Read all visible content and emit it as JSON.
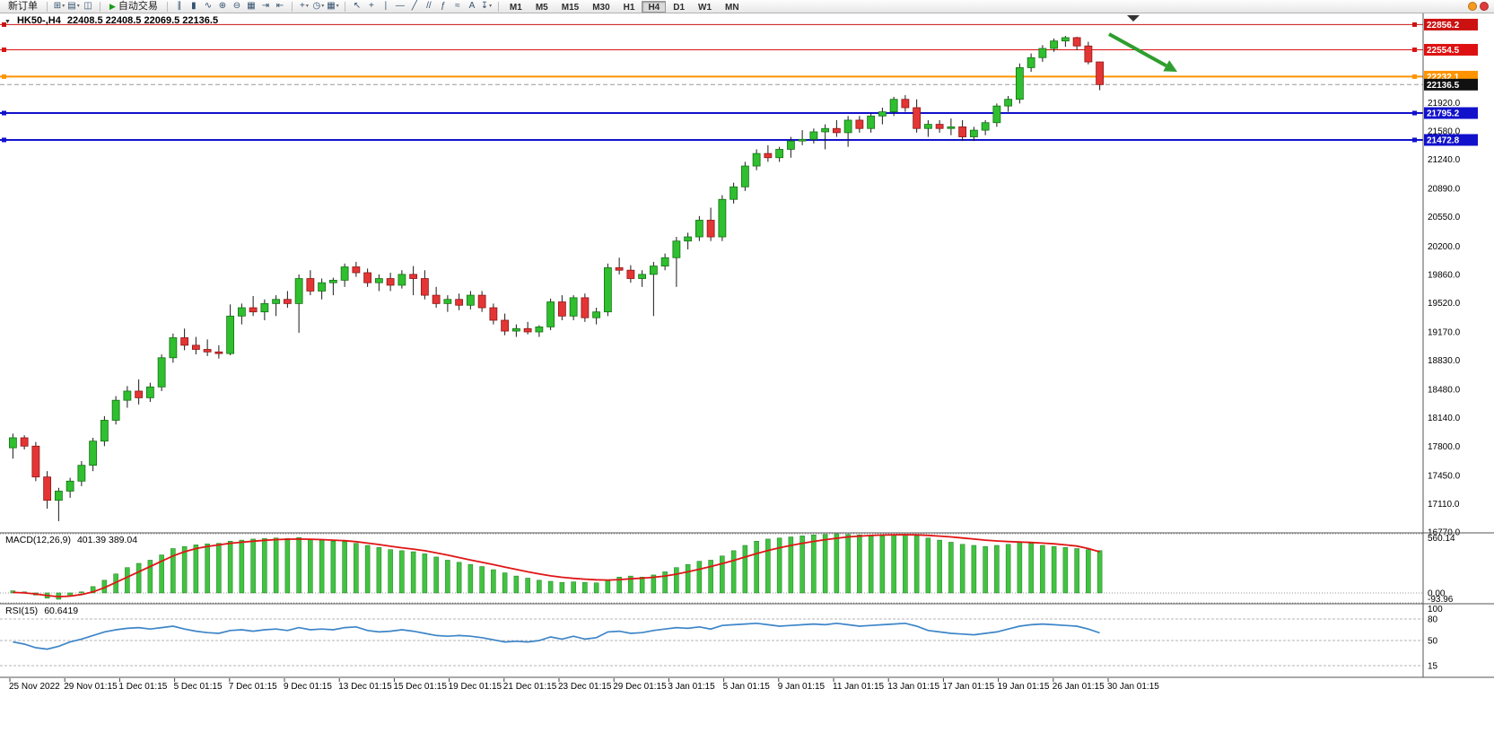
{
  "window": {
    "title_symbol": "HK50-,H4",
    "ohlc": "22408.5 22408.5 22069.5 22136.5"
  },
  "toolbar": {
    "new_order_label": "新订单",
    "autotrading_label": "自动交易",
    "autotrading_play_glyph": "▶",
    "one_click_glyph": "▼",
    "icon_groups": {
      "g1": [
        {
          "name": "new-chart-icon",
          "glyph": "⊞",
          "caret": true
        },
        {
          "name": "profiles-icon",
          "glyph": "▤",
          "caret": true
        },
        {
          "name": "data-window-icon",
          "glyph": "◫"
        }
      ],
      "g2": [
        {
          "name": "bar-chart-icon",
          "glyph": "∥"
        },
        {
          "name": "candlestick-chart-icon",
          "glyph": "▮"
        },
        {
          "name": "line-chart-icon",
          "glyph": "∿"
        },
        {
          "name": "zoom-in-icon",
          "glyph": "⊕"
        },
        {
          "name": "zoom-out-icon",
          "glyph": "⊖"
        },
        {
          "name": "tile-windows-icon",
          "glyph": "▦"
        },
        {
          "name": "auto-scroll-icon",
          "glyph": "⇥"
        },
        {
          "name": "chart-shift-icon",
          "glyph": "⇤"
        }
      ],
      "g3": [
        {
          "name": "indicators-icon",
          "glyph": "+",
          "caret": true
        },
        {
          "name": "periods-icon",
          "glyph": "◷",
          "caret": true
        },
        {
          "name": "templates-icon",
          "glyph": "▦",
          "caret": true
        }
      ],
      "g4": [
        {
          "name": "cursor-icon",
          "glyph": "↖"
        },
        {
          "name": "crosshair-icon",
          "glyph": "+"
        },
        {
          "name": "vertical-line-icon",
          "glyph": "∣"
        },
        {
          "name": "horizontal-line-icon",
          "glyph": "—"
        },
        {
          "name": "trendline-icon",
          "glyph": "╱"
        },
        {
          "name": "channel-icon",
          "glyph": "//"
        },
        {
          "name": "fibonacci-icon",
          "glyph": "ƒ"
        },
        {
          "name": "waves-icon",
          "glyph": "≈"
        },
        {
          "name": "text-icon",
          "glyph": "A"
        },
        {
          "name": "arrows-icon",
          "glyph": "↧",
          "caret": true
        }
      ]
    },
    "timeframes": [
      "M1",
      "M5",
      "M15",
      "M30",
      "H1",
      "H4",
      "D1",
      "W1",
      "MN"
    ],
    "active_timeframe": "H4",
    "right_badges": [
      "#f59b22",
      "#e03b3b"
    ]
  },
  "chart_data": {
    "type": "candlestick",
    "title": "HK50-,H4 22408.5 22408.5 22069.5 22136.5",
    "colors": {
      "up": "#2fbf2f",
      "up_edge": "#157015",
      "down": "#e43535",
      "down_edge": "#8f1515"
    },
    "price_axis": {
      "min": 16770,
      "max": 22990,
      "ticks": [
        22850,
        21920,
        21580,
        21240,
        20890,
        20550,
        20200,
        19860,
        19520,
        19170,
        18830,
        18480,
        18140,
        17800,
        17450,
        17110,
        16770
      ]
    },
    "levels": [
      {
        "value": 22856.2,
        "color": "#cc1111",
        "width": 1,
        "style": "solid",
        "badge": "22856.2",
        "handles": true
      },
      {
        "value": 22554.5,
        "color": "#dd1111",
        "width": 1,
        "style": "solid",
        "badge": "22554.5",
        "handles": true
      },
      {
        "value": 22232.1,
        "color": "#ff9400",
        "width": 2,
        "style": "solid",
        "badge": "22232.1",
        "handles": true
      },
      {
        "value": 22136.5,
        "color": "#9a9a9a",
        "width": 1,
        "style": "dashed",
        "badge": "22136.5",
        "badge_color": "#111111"
      },
      {
        "value": 21795.2,
        "color": "#1111cc",
        "width": 2,
        "style": "solid",
        "badge": "21795.2",
        "handles": true
      },
      {
        "value": 21472.8,
        "color": "#1111cc",
        "width": 2,
        "style": "solid",
        "badge": "21472.8",
        "handles": true
      }
    ],
    "candles": [
      [
        17780,
        17950,
        17650,
        17900
      ],
      [
        17900,
        17930,
        17760,
        17800
      ],
      [
        17800,
        17850,
        17380,
        17430
      ],
      [
        17430,
        17500,
        17050,
        17150
      ],
      [
        17150,
        17300,
        16900,
        17260
      ],
      [
        17260,
        17420,
        17180,
        17380
      ],
      [
        17380,
        17620,
        17320,
        17570
      ],
      [
        17570,
        17900,
        17500,
        17860
      ],
      [
        17860,
        18160,
        17800,
        18110
      ],
      [
        18110,
        18400,
        18060,
        18350
      ],
      [
        18350,
        18520,
        18260,
        18460
      ],
      [
        18460,
        18600,
        18300,
        18380
      ],
      [
        18380,
        18560,
        18330,
        18510
      ],
      [
        18510,
        18900,
        18460,
        18860
      ],
      [
        18860,
        19150,
        18800,
        19100
      ],
      [
        19100,
        19210,
        18950,
        19010
      ],
      [
        19010,
        19110,
        18900,
        18960
      ],
      [
        18960,
        19080,
        18880,
        18930
      ],
      [
        18930,
        19010,
        18850,
        18910
      ],
      [
        18910,
        19500,
        18890,
        19360
      ],
      [
        19360,
        19510,
        19260,
        19460
      ],
      [
        19460,
        19600,
        19360,
        19410
      ],
      [
        19410,
        19560,
        19310,
        19510
      ],
      [
        19510,
        19610,
        19360,
        19560
      ],
      [
        19560,
        19660,
        19460,
        19510
      ],
      [
        19510,
        19860,
        19160,
        19810
      ],
      [
        19810,
        19910,
        19610,
        19660
      ],
      [
        19660,
        19810,
        19560,
        19760
      ],
      [
        19760,
        19820,
        19610,
        19790
      ],
      [
        19790,
        19990,
        19710,
        19950
      ],
      [
        19950,
        20010,
        19830,
        19880
      ],
      [
        19880,
        19930,
        19710,
        19760
      ],
      [
        19760,
        19860,
        19660,
        19810
      ],
      [
        19810,
        19880,
        19660,
        19730
      ],
      [
        19730,
        19910,
        19690,
        19860
      ],
      [
        19860,
        19960,
        19610,
        19810
      ],
      [
        19810,
        19910,
        19560,
        19610
      ],
      [
        19610,
        19710,
        19460,
        19510
      ],
      [
        19510,
        19610,
        19410,
        19560
      ],
      [
        19560,
        19630,
        19430,
        19490
      ],
      [
        19490,
        19660,
        19440,
        19610
      ],
      [
        19610,
        19660,
        19410,
        19460
      ],
      [
        19460,
        19510,
        19260,
        19310
      ],
      [
        19310,
        19390,
        19130,
        19180
      ],
      [
        19180,
        19260,
        19110,
        19210
      ],
      [
        19210,
        19290,
        19140,
        19170
      ],
      [
        19170,
        19250,
        19110,
        19230
      ],
      [
        19230,
        19570,
        19190,
        19530
      ],
      [
        19530,
        19610,
        19310,
        19360
      ],
      [
        19360,
        19610,
        19310,
        19580
      ],
      [
        19580,
        19630,
        19290,
        19340
      ],
      [
        19340,
        19460,
        19260,
        19410
      ],
      [
        19410,
        19990,
        19360,
        19940
      ],
      [
        19940,
        20060,
        19860,
        19910
      ],
      [
        19910,
        19970,
        19760,
        19810
      ],
      [
        19810,
        19910,
        19710,
        19860
      ],
      [
        19860,
        20010,
        19360,
        19960
      ],
      [
        19960,
        20110,
        19910,
        20060
      ],
      [
        20060,
        20310,
        19710,
        20260
      ],
      [
        20260,
        20360,
        20160,
        20310
      ],
      [
        20310,
        20560,
        20260,
        20510
      ],
      [
        20510,
        20660,
        20260,
        20310
      ],
      [
        20310,
        20810,
        20260,
        20760
      ],
      [
        20760,
        20960,
        20710,
        20910
      ],
      [
        20910,
        21210,
        20860,
        21160
      ],
      [
        21160,
        21360,
        21110,
        21310
      ],
      [
        21310,
        21410,
        21210,
        21260
      ],
      [
        21260,
        21390,
        21210,
        21360
      ],
      [
        21360,
        21510,
        21260,
        21460
      ],
      [
        21460,
        21590,
        21410,
        21480
      ],
      [
        21480,
        21610,
        21430,
        21570
      ],
      [
        21570,
        21660,
        21360,
        21610
      ],
      [
        21610,
        21710,
        21510,
        21560
      ],
      [
        21560,
        21760,
        21390,
        21710
      ],
      [
        21710,
        21760,
        21560,
        21610
      ],
      [
        21610,
        21790,
        21560,
        21760
      ],
      [
        21760,
        21860,
        21660,
        21810
      ],
      [
        21810,
        21990,
        21760,
        21960
      ],
      [
        21960,
        22010,
        21810,
        21860
      ],
      [
        21860,
        21960,
        21560,
        21610
      ],
      [
        21610,
        21710,
        21510,
        21660
      ],
      [
        21660,
        21710,
        21560,
        21610
      ],
      [
        21610,
        21730,
        21530,
        21630
      ],
      [
        21630,
        21710,
        21460,
        21510
      ],
      [
        21510,
        21630,
        21460,
        21590
      ],
      [
        21590,
        21710,
        21530,
        21680
      ],
      [
        21680,
        21910,
        21630,
        21880
      ],
      [
        21880,
        22000,
        21810,
        21960
      ],
      [
        21960,
        22390,
        21910,
        22340
      ],
      [
        22340,
        22510,
        22290,
        22460
      ],
      [
        22460,
        22610,
        22410,
        22570
      ],
      [
        22570,
        22690,
        22530,
        22660
      ],
      [
        22660,
        22720,
        22590,
        22700
      ],
      [
        22700,
        22710,
        22550,
        22600
      ],
      [
        22600,
        22650,
        22380,
        22408.5
      ],
      [
        22408.5,
        22408.5,
        22069.5,
        22136.5
      ]
    ],
    "macd": {
      "label": "MACD(12,26,9)",
      "values_text": "401.39 389.04",
      "scale": {
        "max": 560.14,
        "min": -93.96,
        "labels": [
          "560.14",
          "0.00",
          "-93.96"
        ]
      },
      "hist": [
        20,
        10,
        -20,
        -50,
        -60,
        -30,
        10,
        60,
        120,
        180,
        240,
        280,
        310,
        360,
        420,
        440,
        455,
        465,
        470,
        490,
        500,
        510,
        515,
        520,
        515,
        525,
        510,
        500,
        490,
        485,
        470,
        450,
        430,
        410,
        400,
        390,
        370,
        340,
        310,
        290,
        270,
        250,
        220,
        190,
        160,
        140,
        120,
        110,
        100,
        105,
        100,
        95,
        120,
        150,
        160,
        150,
        170,
        200,
        240,
        270,
        300,
        310,
        350,
        400,
        450,
        490,
        510,
        520,
        530,
        540,
        550,
        555,
        560,
        555,
        550,
        545,
        540,
        545,
        550,
        540,
        520,
        500,
        480,
        460,
        450,
        440,
        450,
        460,
        480,
        470,
        450,
        440,
        430,
        420,
        410,
        401
      ],
      "signal": [
        5,
        0,
        -10,
        -25,
        -35,
        -30,
        -15,
        10,
        50,
        100,
        150,
        200,
        250,
        300,
        350,
        390,
        420,
        440,
        455,
        470,
        480,
        490,
        498,
        505,
        508,
        510,
        508,
        505,
        500,
        495,
        485,
        472,
        458,
        442,
        428,
        415,
        400,
        380,
        358,
        335,
        312,
        290,
        268,
        245,
        222,
        200,
        180,
        162,
        148,
        138,
        130,
        124,
        122,
        126,
        134,
        140,
        148,
        160,
        178,
        200,
        225,
        250,
        278,
        308,
        340,
        372,
        402,
        428,
        450,
        470,
        488,
        504,
        518,
        530,
        538,
        544,
        548,
        550,
        552,
        550,
        545,
        538,
        530,
        520,
        510,
        500,
        492,
        486,
        482,
        478,
        472,
        465,
        455,
        444,
        420,
        389
      ]
    },
    "rsi": {
      "label": "RSI(15)",
      "value_text": "60.6419",
      "levels": [
        80,
        50,
        15
      ],
      "scale_labels": [
        {
          "v": 100,
          "t": "100"
        },
        {
          "v": 80,
          "t": "80"
        },
        {
          "v": 50,
          "t": "50"
        },
        {
          "v": 15,
          "t": "15"
        }
      ],
      "values": [
        48,
        45,
        40,
        38,
        42,
        48,
        52,
        57,
        62,
        65,
        67,
        68,
        66,
        68,
        70,
        66,
        63,
        61,
        60,
        64,
        65,
        63,
        65,
        66,
        64,
        68,
        65,
        66,
        65,
        68,
        69,
        64,
        62,
        63,
        65,
        63,
        60,
        57,
        56,
        57,
        56,
        54,
        51,
        48,
        49,
        48,
        50,
        55,
        52,
        56,
        52,
        54,
        62,
        63,
        60,
        61,
        64,
        66,
        68,
        67,
        69,
        66,
        71,
        72,
        73,
        74,
        72,
        70,
        71,
        72,
        73,
        72,
        74,
        72,
        70,
        71,
        72,
        73,
        74,
        70,
        64,
        62,
        60,
        59,
        58,
        60,
        62,
        66,
        70,
        72,
        73,
        72,
        71,
        70,
        66,
        60.64
      ]
    },
    "time_labels": [
      "25 Nov 2022",
      "29 Nov 01:15",
      "1 Dec 01:15",
      "5 Dec 01:15",
      "7 Dec 01:15",
      "9 Dec 01:15",
      "13 Dec 01:15",
      "15 Dec 01:15",
      "19 Dec 01:15",
      "21 Dec 01:15",
      "23 Dec 01:15",
      "29 Dec 01:15",
      "3 Jan 01:15",
      "5 Jan 01:15",
      "9 Jan 01:15",
      "11 Jan 01:15",
      "13 Jan 01:15",
      "17 Jan 01:15",
      "19 Jan 01:15",
      "26 Jan 01:15",
      "30 Jan 01:15"
    ],
    "annotations": {
      "arrow": {
        "direction": "down-right",
        "color": "#2f9e2f"
      }
    }
  }
}
